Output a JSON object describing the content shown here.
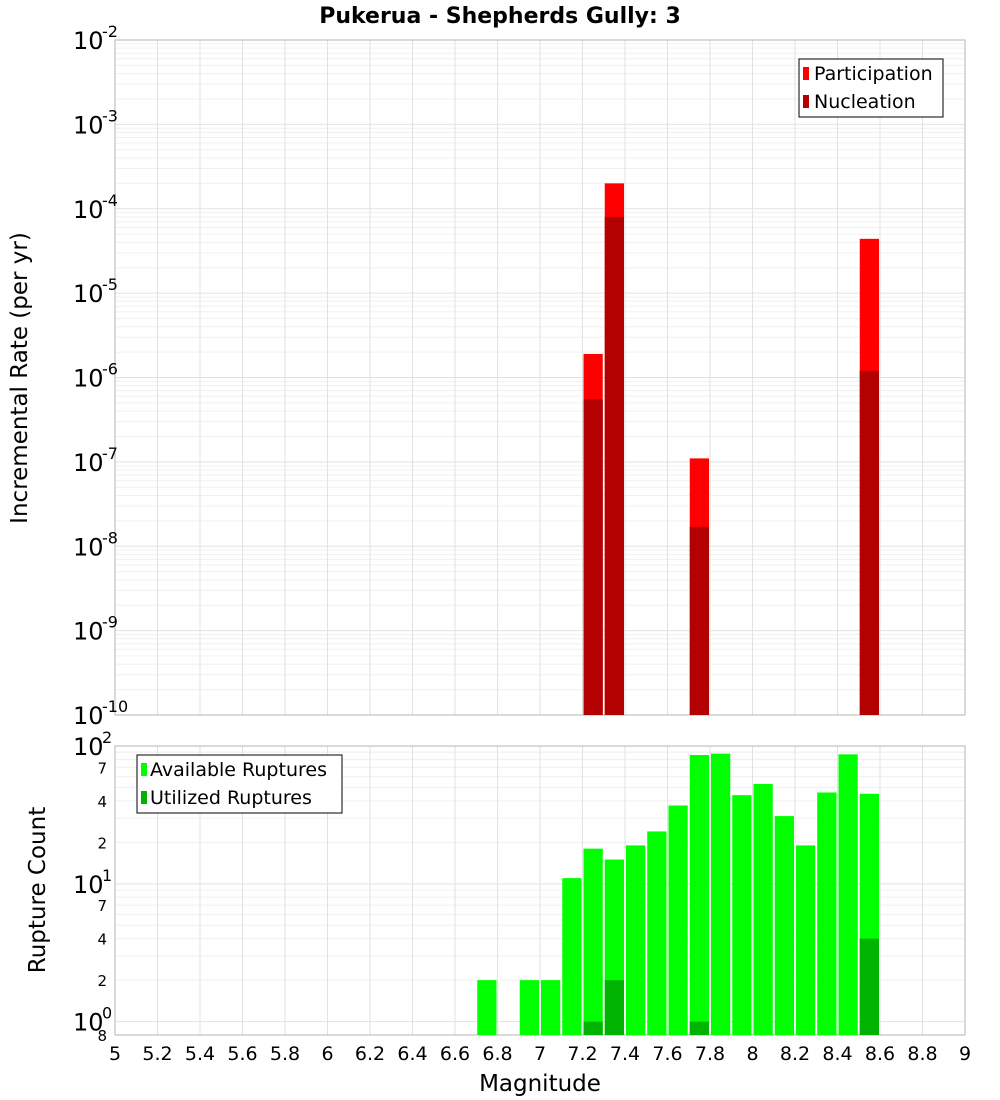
{
  "chart_data": [
    {
      "type": "bar",
      "title": "Pukerua - Shepherds Gully: 3",
      "xlabel": "Magnitude",
      "ylabel": "Incremental Rate (per yr)",
      "yscale": "log",
      "xlim": [
        5,
        9
      ],
      "ylim": [
        1e-10,
        0.01
      ],
      "bin_width": 0.1,
      "y_tick_base": "10",
      "y_tick_exponents": [
        "-2",
        "-3",
        "-4",
        "-5",
        "-6",
        "-7",
        "-8",
        "-9",
        "-10"
      ],
      "legend": {
        "position": "top-right",
        "entries": [
          "Participation",
          "Nucleation"
        ]
      },
      "colors": {
        "Participation": "#ff0000",
        "Nucleation": "#b30000"
      },
      "series": [
        {
          "name": "Participation",
          "x": [
            7.25,
            7.35,
            7.75,
            8.55
          ],
          "values": [
            1.9e-06,
            0.0002,
            1.1e-07,
            4.4e-05
          ]
        },
        {
          "name": "Nucleation",
          "x": [
            7.25,
            7.35,
            7.75,
            8.55
          ],
          "values": [
            5.5e-07,
            8e-05,
            1.7e-08,
            1.2e-06
          ]
        }
      ]
    },
    {
      "type": "bar",
      "xlabel": "Magnitude",
      "ylabel": "Rupture Count",
      "yscale": "log",
      "xlim": [
        5,
        9
      ],
      "ylim": [
        0.8,
        100
      ],
      "bin_width": 0.1,
      "x_ticks": [
        "5",
        "5.2",
        "5.4",
        "5.6",
        "5.8",
        "6",
        "6.2",
        "6.4",
        "6.6",
        "6.8",
        "7",
        "7.2",
        "7.4",
        "7.6",
        "7.8",
        "8",
        "8.2",
        "8.4",
        "8.6",
        "8.8",
        "9"
      ],
      "y_tick_base": "10",
      "y_tick_exponents": [
        "2",
        "1",
        "0"
      ],
      "y_minor_ticks": [
        "7",
        "4",
        "2",
        "7",
        "4",
        "2",
        "8"
      ],
      "legend": {
        "position": "top-left",
        "entries": [
          "Available Ruptures",
          "Utilized Ruptures"
        ]
      },
      "colors": {
        "Available Ruptures": "#00ff00",
        "Utilized Ruptures": "#00b300"
      },
      "series": [
        {
          "name": "Available Ruptures",
          "x": [
            6.75,
            6.95,
            7.05,
            7.15,
            7.25,
            7.35,
            7.45,
            7.55,
            7.65,
            7.75,
            7.85,
            7.95,
            8.05,
            8.15,
            8.25,
            8.35,
            8.45,
            8.55
          ],
          "values": [
            2,
            2,
            2,
            11,
            18,
            15,
            19,
            24,
            37,
            86,
            88,
            44,
            53,
            31,
            19,
            46,
            87,
            45
          ]
        },
        {
          "name": "Utilized Ruptures",
          "x": [
            7.25,
            7.35,
            7.75,
            8.55
          ],
          "values": [
            1,
            2,
            1,
            4
          ]
        }
      ]
    }
  ]
}
